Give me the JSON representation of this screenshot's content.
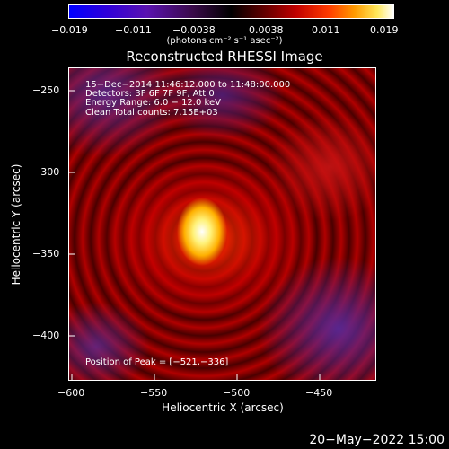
{
  "colorbar": {
    "ticks": [
      "−0.019",
      "−0.011",
      "−0.0038",
      "0.0038",
      "0.011",
      "0.019"
    ],
    "unit_label": "(photons cm⁻² s⁻¹ asec⁻²)"
  },
  "plot": {
    "title": "Reconstructed RHESSI Image",
    "info_lines": [
      "15−Dec−2014 11:46:12.000 to 11:48:00.000",
      "Detectors: 3F 6F 7F 9F, Att 0",
      "Energy Range: 6.0 − 12.0 keV",
      "Clean    Total counts: 7.15E+03"
    ],
    "peak_label": "Position of Peak = [−521,−336]",
    "xlabel": "Heliocentric X (arcsec)",
    "ylabel": "Heliocentric Y (arcsec)",
    "xticks": [
      "−600",
      "−550",
      "−500",
      "−450"
    ],
    "yticks": [
      "−250",
      "−300",
      "−350",
      "−400"
    ]
  },
  "footer": {
    "date": "20−May−2022 15:00"
  },
  "colors": {
    "background": "#000000",
    "axis": "#ffffff"
  }
}
